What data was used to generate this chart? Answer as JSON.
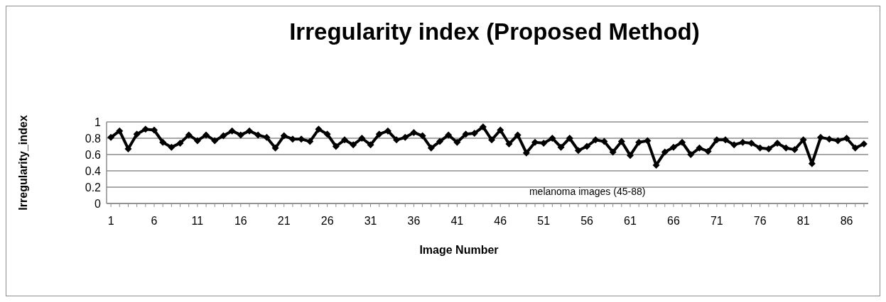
{
  "chart_data": {
    "type": "line",
    "title": "Irregularity index (Proposed Method)",
    "xlabel": "Image Number",
    "ylabel": "Irregularity_index",
    "x": [
      1,
      2,
      3,
      4,
      5,
      6,
      7,
      8,
      9,
      10,
      11,
      12,
      13,
      14,
      15,
      16,
      17,
      18,
      19,
      20,
      21,
      22,
      23,
      24,
      25,
      26,
      27,
      28,
      29,
      30,
      31,
      32,
      33,
      34,
      35,
      36,
      37,
      38,
      39,
      40,
      41,
      42,
      43,
      44,
      45,
      46,
      47,
      48,
      49,
      50,
      51,
      52,
      53,
      54,
      55,
      56,
      57,
      58,
      59,
      60,
      61,
      62,
      63,
      64,
      65,
      66,
      67,
      68,
      69,
      70,
      71,
      72,
      73,
      74,
      75,
      76,
      77,
      78,
      79,
      80,
      81,
      82,
      83,
      84,
      85,
      86,
      87,
      88
    ],
    "xlim": [
      0.5,
      88.5
    ],
    "xticks": [
      1,
      6,
      11,
      16,
      21,
      26,
      31,
      36,
      41,
      46,
      51,
      56,
      61,
      66,
      71,
      76,
      81,
      86
    ],
    "series": [
      {
        "color": "#000000",
        "values": [
          0.81,
          0.89,
          0.67,
          0.85,
          0.91,
          0.9,
          0.75,
          0.69,
          0.74,
          0.84,
          0.77,
          0.84,
          0.77,
          0.83,
          0.89,
          0.84,
          0.89,
          0.84,
          0.81,
          0.68,
          0.83,
          0.79,
          0.79,
          0.76,
          0.91,
          0.85,
          0.7,
          0.78,
          0.72,
          0.8,
          0.72,
          0.85,
          0.89,
          0.78,
          0.81,
          0.87,
          0.83,
          0.68,
          0.76,
          0.84,
          0.75,
          0.85,
          0.86,
          0.94,
          0.78,
          0.9,
          0.73,
          0.84,
          0.62,
          0.75,
          0.74,
          0.8,
          0.69,
          0.8,
          0.65,
          0.7,
          0.78,
          0.76,
          0.63,
          0.76,
          0.59,
          0.75,
          0.77,
          0.47,
          0.63,
          0.69,
          0.75,
          0.6,
          0.68,
          0.64,
          0.78,
          0.78,
          0.72,
          0.75,
          0.74,
          0.68,
          0.67,
          0.74,
          0.68,
          0.66,
          0.78,
          0.49,
          0.81,
          0.79,
          0.77,
          0.8,
          0.68,
          0.73
        ]
      }
    ],
    "ylim": [
      0,
      1
    ],
    "yticks": [
      0,
      0.2,
      0.4,
      0.6,
      0.8,
      1
    ],
    "grid": "y",
    "marker": "diamond",
    "line_style": "solid",
    "annotations": [
      "melanoma images (45-88)"
    ]
  }
}
